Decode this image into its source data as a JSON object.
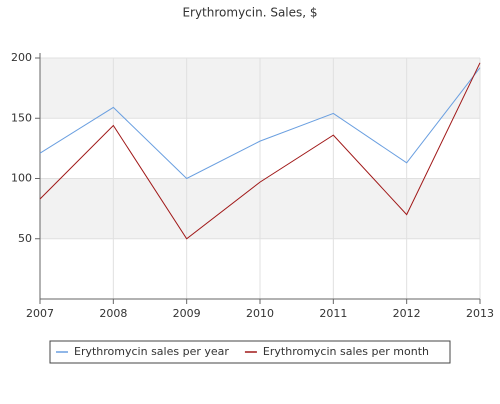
{
  "chart_data": {
    "type": "line",
    "title": "Erythromycin. Sales, $",
    "x": [
      2007,
      2008,
      2009,
      2010,
      2011,
      2012,
      2013
    ],
    "series": [
      {
        "name": "Erythromycin sales per year",
        "color": "#6a9fe0",
        "values": [
          121,
          159,
          100,
          131,
          154,
          113,
          192
        ]
      },
      {
        "name": "Erythromycin sales per month",
        "color": "#a01818",
        "values": [
          83,
          144,
          50,
          97,
          136,
          70,
          196
        ]
      }
    ],
    "xlim": [
      2007,
      2013
    ],
    "xticks": [
      2007,
      2008,
      2009,
      2010,
      2011,
      2012,
      2013
    ],
    "ylim": [
      0,
      200
    ],
    "yticks": [
      50,
      100,
      150,
      200
    ],
    "grid": true
  }
}
